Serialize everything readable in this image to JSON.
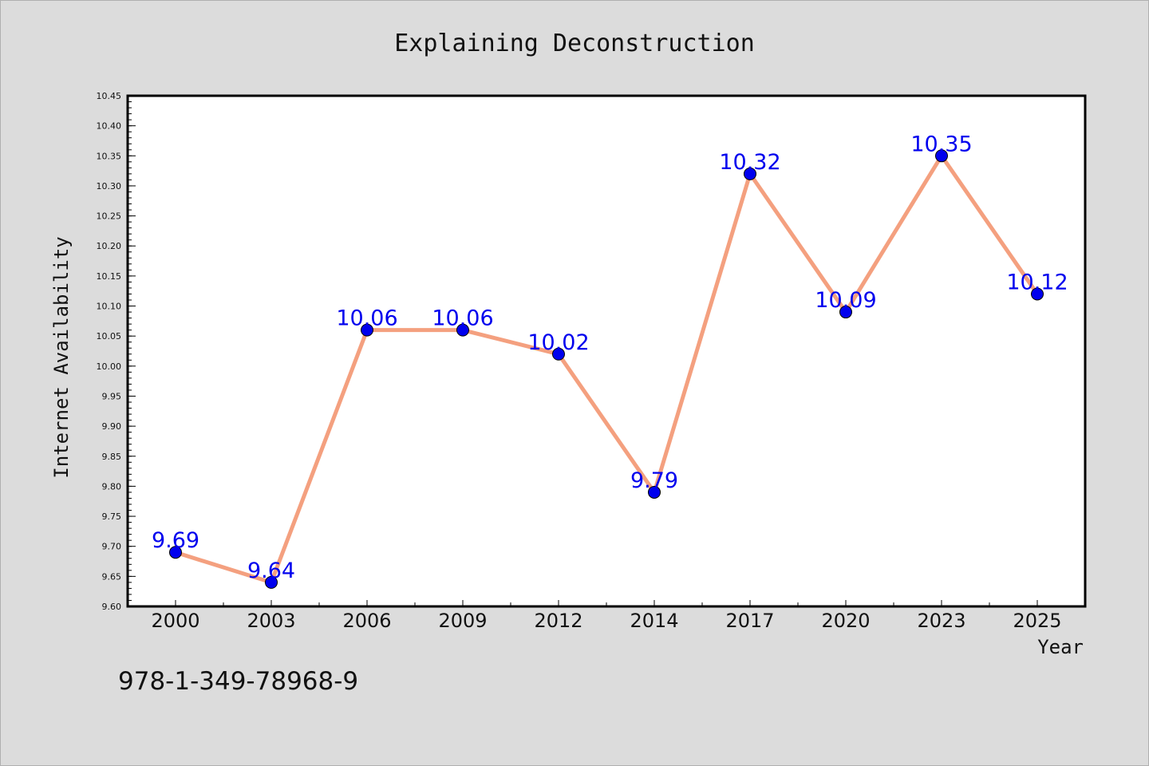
{
  "chart_data": {
    "type": "line",
    "title": "Explaining Deconstruction",
    "xlabel": "Year",
    "ylabel": "Internet Availability",
    "categories": [
      "2000",
      "2003",
      "2006",
      "2009",
      "2012",
      "2014",
      "2017",
      "2020",
      "2023",
      "2025"
    ],
    "values": [
      9.69,
      9.64,
      10.06,
      10.06,
      10.02,
      9.79,
      10.32,
      10.09,
      10.35,
      10.12
    ],
    "data_labels": [
      "9.69",
      "9.64",
      "10.06",
      "10.06",
      "10.02",
      "9.79",
      "10.32",
      "10.09",
      "10.35",
      "10.12"
    ],
    "ylim": [
      9.6,
      10.45
    ],
    "yticks": [
      "9.60",
      "9.65",
      "9.70",
      "9.75",
      "9.80",
      "9.85",
      "9.90",
      "9.95",
      "10.00",
      "10.05",
      "10.10",
      "10.15",
      "10.20",
      "10.25",
      "10.30",
      "10.35",
      "10.40",
      "10.45"
    ],
    "grid": false,
    "line_color": "#f4a07f",
    "marker_color": "#0000ee",
    "label_color": "#0000ee"
  },
  "footnote": "978-1-349-78968-9"
}
